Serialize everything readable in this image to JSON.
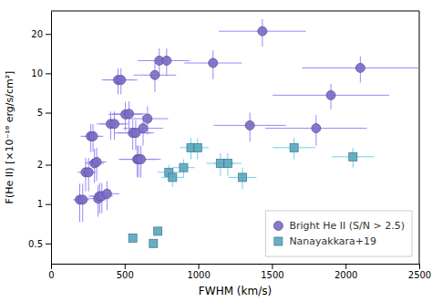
{
  "chart_data": {
    "type": "scatter",
    "xlabel": "FWHM (km/s)",
    "ylabel": "F(He II) [×10⁻¹⁸ erg/s/cm²]",
    "xlim": [
      0,
      2500
    ],
    "ylim": [
      0.35,
      30
    ],
    "xticks": [
      0,
      500,
      1000,
      1500,
      2000,
      2500
    ],
    "yticks": [
      0.5,
      1,
      2,
      5,
      10,
      20
    ],
    "log": "y",
    "grid": false,
    "legend": "lower right",
    "series": [
      {
        "name": "Bright He II (S/N > 2.5)",
        "color": "#7B6EC8",
        "marker": "circle",
        "x": [
          195,
          215,
          235,
          255,
          270,
          285,
          295,
          310,
          320,
          330,
          345,
          380,
          405,
          430,
          455,
          475,
          505,
          530,
          555,
          575,
          585,
          595,
          610,
          625,
          655,
          705,
          735,
          785,
          1100,
          1350,
          1435,
          1800,
          1900,
          2100
        ],
        "values": [
          1.08,
          1.08,
          1.75,
          1.75,
          3.3,
          3.3,
          2.05,
          2.1,
          1.1,
          1.15,
          1.15,
          1.2,
          4.1,
          4.1,
          8.9,
          8.9,
          4.85,
          4.9,
          3.5,
          3.5,
          2.2,
          2.2,
          2.2,
          3.8,
          4.5,
          9.7,
          12.5,
          12.5,
          12.0,
          4.0,
          21.0,
          3.8,
          6.8,
          11.0
        ],
        "xerr": [
          45,
          45,
          55,
          55,
          70,
          70,
          65,
          65,
          75,
          75,
          75,
          85,
          95,
          95,
          110,
          110,
          115,
          115,
          125,
          125,
          125,
          125,
          135,
          135,
          140,
          145,
          145,
          155,
          195,
          245,
          295,
          345,
          395,
          395
        ],
        "yerr_lo": [
          0.35,
          0.35,
          0.5,
          0.5,
          0.8,
          0.8,
          0.6,
          0.6,
          0.3,
          0.3,
          0.3,
          0.3,
          1.0,
          1.0,
          2.0,
          2.0,
          1.2,
          1.2,
          0.9,
          0.9,
          0.6,
          0.6,
          0.6,
          1.0,
          1.1,
          2.5,
          3.0,
          3.0,
          3.0,
          1.0,
          5.0,
          1.0,
          1.5,
          2.5
        ],
        "yerr_hi": [
          0.35,
          0.35,
          0.5,
          0.5,
          0.8,
          0.8,
          0.6,
          0.6,
          0.3,
          0.3,
          0.3,
          0.3,
          1.0,
          1.0,
          2.0,
          2.0,
          1.2,
          1.2,
          0.9,
          0.9,
          0.6,
          0.6,
          0.6,
          1.0,
          1.1,
          2.5,
          3.0,
          3.0,
          3.0,
          1.0,
          5.0,
          1.0,
          1.5,
          2.5
        ]
      },
      {
        "name": "Nanayakkara+19",
        "color": "#5BA8C0",
        "marker": "square",
        "x": [
          555,
          695,
          725,
          800,
          825,
          900,
          950,
          995,
          1150,
          1200,
          1300,
          1650,
          2050
        ],
        "values": [
          0.55,
          0.5,
          0.62,
          1.75,
          1.6,
          1.9,
          2.7,
          2.7,
          2.05,
          2.05,
          1.6,
          2.7,
          2.3
        ],
        "xerr": [
          0,
          0,
          0,
          75,
          75,
          75,
          75,
          75,
          95,
          95,
          95,
          145,
          145
        ],
        "yerr_lo": [
          0.0,
          0.0,
          0.0,
          0.25,
          0.25,
          0.3,
          0.5,
          0.5,
          0.4,
          0.4,
          0.3,
          0.5,
          0.4
        ],
        "yerr_hi": [
          0.0,
          0.0,
          0.0,
          0.25,
          0.25,
          0.3,
          0.5,
          0.5,
          0.4,
          0.4,
          0.3,
          0.5,
          0.4
        ]
      }
    ]
  }
}
